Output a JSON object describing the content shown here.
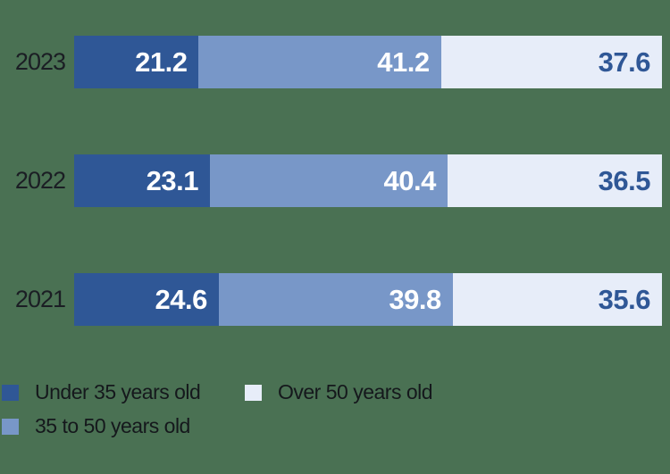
{
  "chart_data": {
    "type": "bar",
    "orientation": "horizontal",
    "stacked": true,
    "unit": "percent",
    "title": "",
    "xlabel": "",
    "ylabel": "",
    "xlim": [
      0,
      100
    ],
    "grid": false,
    "legend_position": "bottom",
    "background_color": "#4A7153",
    "categories": [
      "2023",
      "2022",
      "2021"
    ],
    "series": [
      {
        "name": "Under 35 years old",
        "color": "#2F5796",
        "label_color": "#ffffff",
        "values": [
          21.2,
          23.1,
          24.6
        ]
      },
      {
        "name": "35 to 50 years old",
        "color": "#7897C8",
        "label_color": "#ffffff",
        "values": [
          41.2,
          40.4,
          39.8
        ]
      },
      {
        "name": "Over 50 years old",
        "color": "#E7EDF9",
        "label_color": "#2F5796",
        "values": [
          37.6,
          36.5,
          35.6
        ]
      }
    ]
  }
}
